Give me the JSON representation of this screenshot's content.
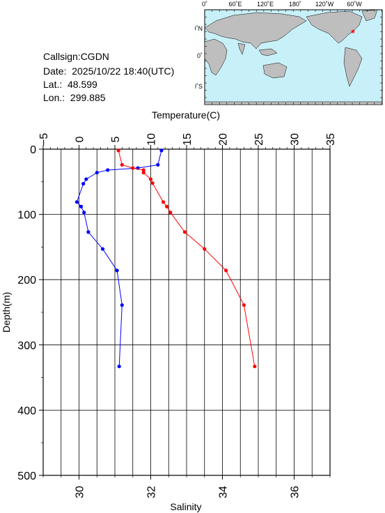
{
  "header": {
    "callsign": "Callsign:CGDN",
    "date": "Date:  2025/10/22 18:40(UTC)",
    "lat": "Lat.:  48.599",
    "lon": "Lon.:  299.885"
  },
  "map": {
    "top_labels": [
      "0˚",
      "60˚E",
      "120˚E",
      "180˚",
      "120˚W",
      "60˚W"
    ],
    "left_labels": [
      "60˚N",
      "0˚",
      "60˚S"
    ],
    "ocean_color": "#c8f0f8",
    "land_color": "#bebebe",
    "marker_color": "#ff0000",
    "marker_icon": "asterisk-icon"
  },
  "chart_data": {
    "type": "line",
    "ylabel": "Depth(m)",
    "y_ticks": [
      "0",
      "100",
      "200",
      "300",
      "400",
      "500"
    ],
    "ylim": [
      0,
      500
    ],
    "y_reversed": true,
    "grid": true,
    "top_axis": {
      "label": "Temperature(C)",
      "ticks": [
        "−5",
        "0",
        "5",
        "10",
        "15",
        "20",
        "25",
        "30",
        "35"
      ],
      "lim": [
        -5,
        35
      ]
    },
    "bottom_axis": {
      "label": "Salinity",
      "ticks": [
        "30",
        "32",
        "34",
        "36"
      ],
      "lim": [
        29,
        37
      ]
    },
    "series": [
      {
        "axis": "temperature",
        "color": "#0000ff",
        "points": [
          {
            "x": 11.5,
            "depth": 2
          },
          {
            "x": 11.0,
            "depth": 24
          },
          {
            "x": 8.2,
            "depth": 29
          },
          {
            "x": 4.0,
            "depth": 32
          },
          {
            "x": 2.5,
            "depth": 36
          },
          {
            "x": 1.0,
            "depth": 46
          },
          {
            "x": 0.6,
            "depth": 53
          },
          {
            "x": -0.3,
            "depth": 81
          },
          {
            "x": 0.3,
            "depth": 88
          },
          {
            "x": 0.7,
            "depth": 97
          },
          {
            "x": 1.3,
            "depth": 127
          },
          {
            "x": 3.3,
            "depth": 153
          },
          {
            "x": 5.3,
            "depth": 186
          },
          {
            "x": 6.0,
            "depth": 239
          },
          {
            "x": 5.6,
            "depth": 333
          }
        ]
      },
      {
        "axis": "salinity",
        "color": "#ff0000",
        "points": [
          {
            "x": 31.1,
            "depth": 2
          },
          {
            "x": 31.2,
            "depth": 24
          },
          {
            "x": 31.5,
            "depth": 29
          },
          {
            "x": 31.8,
            "depth": 32
          },
          {
            "x": 31.8,
            "depth": 36
          },
          {
            "x": 32.0,
            "depth": 46
          },
          {
            "x": 32.05,
            "depth": 52
          },
          {
            "x": 32.35,
            "depth": 81
          },
          {
            "x": 32.45,
            "depth": 88
          },
          {
            "x": 32.55,
            "depth": 97
          },
          {
            "x": 32.95,
            "depth": 127
          },
          {
            "x": 33.5,
            "depth": 153
          },
          {
            "x": 34.1,
            "depth": 186
          },
          {
            "x": 34.6,
            "depth": 239
          },
          {
            "x": 34.9,
            "depth": 333
          }
        ]
      }
    ]
  }
}
